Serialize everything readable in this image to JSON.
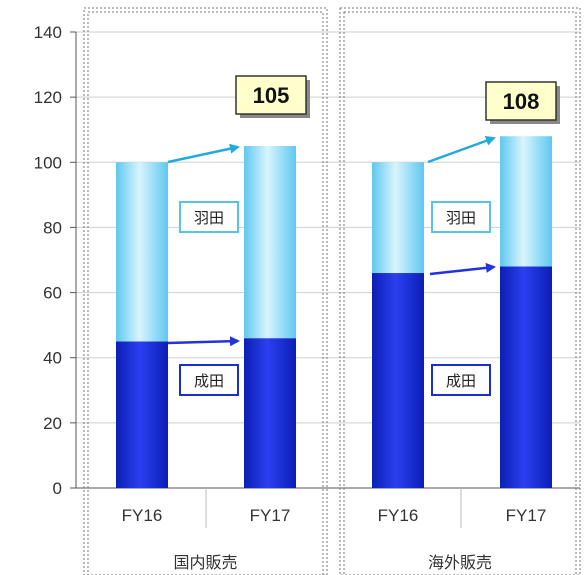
{
  "chart_data": {
    "type": "bar",
    "stacked": true,
    "ylim": [
      0,
      140
    ],
    "yticks": [
      0,
      20,
      40,
      60,
      80,
      100,
      120,
      140
    ],
    "grid": true,
    "groups": [
      {
        "name": "国内販売",
        "categories": [
          "FY16",
          "FY17"
        ],
        "series": [
          {
            "name": "成田",
            "values": [
              45,
              46
            ]
          },
          {
            "name": "羽田",
            "values": [
              55,
              59
            ]
          }
        ],
        "total_label": "105"
      },
      {
        "name": "海外販売",
        "categories": [
          "FY16",
          "FY17"
        ],
        "series": [
          {
            "name": "成田",
            "values": [
              66,
              68
            ]
          },
          {
            "name": "羽田",
            "values": [
              34,
              40
            ]
          }
        ],
        "total_label": "108"
      }
    ]
  },
  "colors": {
    "narita": "#1a2fd0",
    "haneda": "#7fd8f5",
    "arrow_narita": "#2233dd",
    "arrow_haneda": "#22aadd",
    "total_box": "#ffffcc"
  }
}
